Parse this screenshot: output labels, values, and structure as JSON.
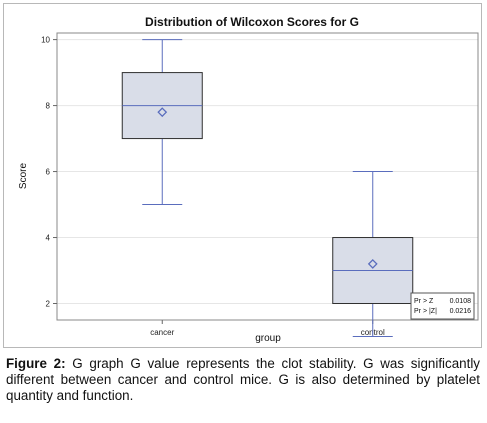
{
  "chart_data": {
    "type": "box",
    "title": "Distribution of Wilcoxon Scores for G",
    "xlabel": "group",
    "ylabel": "Score",
    "categories": [
      "cancer",
      "control"
    ],
    "yticks": [
      "2",
      "4",
      "6",
      "8",
      "10"
    ],
    "ylim": [
      1.5,
      10.2
    ],
    "grid": true,
    "boxes": [
      {
        "category": "cancer",
        "min": 5,
        "q1": 7,
        "median": 8,
        "q3": 9,
        "max": 10,
        "mean": 7.8
      },
      {
        "category": "control",
        "min": 1,
        "q1": 2,
        "median": 3,
        "q3": 4,
        "max": 6,
        "mean": 3.2
      }
    ],
    "inset": {
      "rows": [
        {
          "label": "Pr > Z",
          "value": "0.0108"
        },
        {
          "label": "Pr > |Z|",
          "value": "0.0216"
        }
      ]
    },
    "colors": {
      "box_fill": "#d9dde8",
      "box_stroke": "#2f2f2f",
      "median": "#5a6dbd",
      "mean_marker": "#5a6dbd",
      "whisker": "#5a6dbd",
      "grid": "#e6e6e6"
    }
  },
  "caption": {
    "label": "Figure 2:",
    "text": " G graph G value represents the clot stability. G was significantly different between cancer and control mice. G is also determined by platelet quantity and function."
  }
}
